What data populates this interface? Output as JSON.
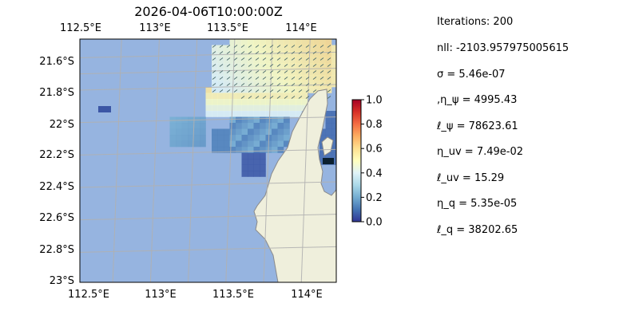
{
  "map": {
    "title": "2026-04-06T10:00:00Z",
    "lon_ticks": [
      "112.5°E",
      "113°E",
      "113.5°E",
      "114°E"
    ],
    "lon_values": [
      112.5,
      113.0,
      113.5,
      114.0
    ],
    "lat_ticks": [
      "21.6°S",
      "21.8°S",
      "22°S",
      "22.2°S",
      "22.4°S",
      "22.6°S",
      "22.8°S",
      "23°S"
    ],
    "lat_values": [
      -21.6,
      -21.8,
      -22.0,
      -22.2,
      -22.4,
      -22.6,
      -22.8,
      -23.0
    ],
    "extent": {
      "lon_min": 112.5,
      "lon_max": 114.2,
      "lat_min": -23.0,
      "lat_max": -21.5
    },
    "colors": {
      "ocean": "#96b4e0",
      "land": "#efefdc",
      "coast": "#8a8a8a",
      "grid": "#b0b0b0"
    }
  },
  "colorbar": {
    "colormap": "RdYlBu_r",
    "ticks": [
      "0.0",
      "0.2",
      "0.4",
      "0.6",
      "0.8",
      "1.0"
    ],
    "tick_values": [
      0.0,
      0.2,
      0.4,
      0.6,
      0.8,
      1.0
    ],
    "range": [
      0.0,
      1.0
    ],
    "stops": [
      "#313695",
      "#4575b4",
      "#74add1",
      "#abd9e9",
      "#e0f3f8",
      "#ffffbf",
      "#fee090",
      "#fdae61",
      "#f46d43",
      "#d73027",
      "#a50026"
    ]
  },
  "stats": {
    "iterations": "Iterations: 200",
    "nll": "nll: -2103.957975005615",
    "sigma": "σ = 5.46e-07",
    "eta_psi": ",η_ψ = 4995.43",
    "ell_psi": "ℓ_ψ = 78623.61",
    "eta_uv": "η_uv = 7.49e-02",
    "ell_uv": "ℓ_uv = 15.29",
    "eta_q": "η_q = 5.35e-05",
    "ell_q": "ℓ_q = 38202.65"
  }
}
